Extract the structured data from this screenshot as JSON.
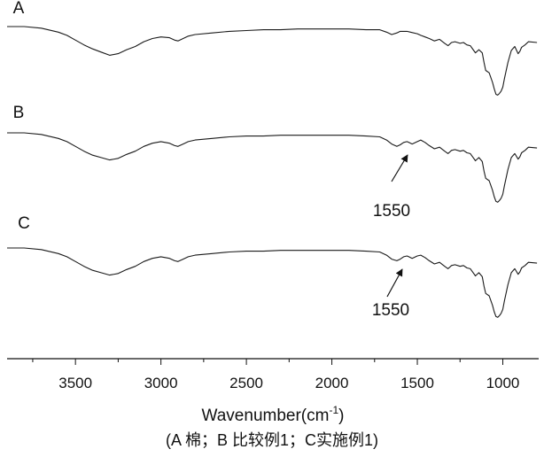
{
  "chart_data": {
    "type": "line",
    "xlabel_main": "Wavenumber(cm",
    "xlabel_sup": "-1",
    "xlabel_close": ")",
    "caption": "(A 棉；B 比较例1；C实施例1)",
    "xlim": [
      3900,
      790
    ],
    "x_reversed": true,
    "x_ticks": [
      3500,
      3000,
      2500,
      2000,
      1500,
      1000
    ],
    "x_tick_labels": [
      "3500",
      "3000",
      "2500",
      "2000",
      "1500",
      "1000"
    ],
    "y_axis_shown": false,
    "series": [
      {
        "name": "A",
        "x": [
          3900,
          3800,
          3700,
          3600,
          3550,
          3500,
          3450,
          3400,
          3350,
          3300,
          3250,
          3200,
          3150,
          3100,
          3050,
          3000,
          2950,
          2920,
          2900,
          2870,
          2840,
          2800,
          2700,
          2600,
          2500,
          2400,
          2300,
          2200,
          2100,
          2000,
          1900,
          1800,
          1720,
          1680,
          1650,
          1620,
          1600,
          1560,
          1540,
          1500,
          1480,
          1455,
          1430,
          1400,
          1370,
          1340,
          1320,
          1300,
          1280,
          1250,
          1230,
          1210,
          1190,
          1170,
          1160,
          1140,
          1120,
          1110,
          1100,
          1080,
          1060,
          1050,
          1040,
          1030,
          1020,
          1010,
          1000,
          990,
          970,
          950,
          930,
          910,
          900,
          890,
          870,
          850,
          800
        ],
        "y": [
          0.0,
          0.0,
          0.02,
          0.07,
          0.11,
          0.17,
          0.23,
          0.28,
          0.32,
          0.36,
          0.34,
          0.29,
          0.25,
          0.19,
          0.15,
          0.13,
          0.14,
          0.17,
          0.18,
          0.15,
          0.12,
          0.1,
          0.08,
          0.06,
          0.05,
          0.04,
          0.04,
          0.03,
          0.03,
          0.03,
          0.03,
          0.04,
          0.04,
          0.07,
          0.1,
          0.08,
          0.06,
          0.06,
          0.07,
          0.09,
          0.11,
          0.13,
          0.15,
          0.18,
          0.16,
          0.21,
          0.24,
          0.2,
          0.19,
          0.21,
          0.2,
          0.23,
          0.24,
          0.3,
          0.33,
          0.29,
          0.33,
          0.45,
          0.55,
          0.58,
          0.7,
          0.78,
          0.85,
          0.86,
          0.84,
          0.81,
          0.76,
          0.65,
          0.45,
          0.3,
          0.25,
          0.34,
          0.31,
          0.26,
          0.23,
          0.19,
          0.2
        ]
      },
      {
        "name": "B",
        "x": [
          3900,
          3800,
          3700,
          3600,
          3550,
          3500,
          3450,
          3400,
          3350,
          3300,
          3250,
          3200,
          3150,
          3100,
          3050,
          3000,
          2950,
          2920,
          2900,
          2870,
          2840,
          2800,
          2700,
          2600,
          2500,
          2400,
          2300,
          2200,
          2100,
          2000,
          1900,
          1800,
          1720,
          1680,
          1650,
          1620,
          1600,
          1580,
          1560,
          1550,
          1530,
          1500,
          1480,
          1455,
          1430,
          1400,
          1370,
          1340,
          1320,
          1300,
          1280,
          1250,
          1230,
          1210,
          1190,
          1170,
          1160,
          1140,
          1120,
          1110,
          1100,
          1080,
          1060,
          1050,
          1040,
          1030,
          1020,
          1010,
          1000,
          990,
          970,
          950,
          930,
          910,
          900,
          890,
          870,
          850,
          800
        ],
        "y": [
          0.0,
          0.0,
          0.02,
          0.07,
          0.11,
          0.17,
          0.23,
          0.28,
          0.31,
          0.34,
          0.32,
          0.27,
          0.23,
          0.17,
          0.13,
          0.11,
          0.13,
          0.16,
          0.17,
          0.14,
          0.11,
          0.09,
          0.07,
          0.05,
          0.04,
          0.04,
          0.03,
          0.03,
          0.03,
          0.03,
          0.03,
          0.04,
          0.05,
          0.09,
          0.14,
          0.17,
          0.15,
          0.12,
          0.11,
          0.12,
          0.14,
          0.11,
          0.09,
          0.12,
          0.16,
          0.2,
          0.18,
          0.23,
          0.26,
          0.22,
          0.21,
          0.23,
          0.22,
          0.25,
          0.26,
          0.32,
          0.35,
          0.31,
          0.36,
          0.48,
          0.57,
          0.6,
          0.72,
          0.8,
          0.86,
          0.87,
          0.85,
          0.82,
          0.77,
          0.66,
          0.46,
          0.31,
          0.26,
          0.33,
          0.3,
          0.25,
          0.22,
          0.18,
          0.19
        ]
      },
      {
        "name": "C",
        "x": [
          3900,
          3800,
          3700,
          3600,
          3550,
          3500,
          3450,
          3400,
          3350,
          3300,
          3250,
          3200,
          3150,
          3100,
          3050,
          3000,
          2950,
          2920,
          2900,
          2870,
          2840,
          2800,
          2700,
          2600,
          2500,
          2400,
          2300,
          2200,
          2100,
          2000,
          1900,
          1800,
          1720,
          1680,
          1650,
          1620,
          1600,
          1580,
          1560,
          1550,
          1530,
          1500,
          1480,
          1455,
          1430,
          1400,
          1370,
          1340,
          1320,
          1300,
          1280,
          1250,
          1230,
          1210,
          1190,
          1170,
          1160,
          1140,
          1120,
          1110,
          1100,
          1080,
          1060,
          1050,
          1040,
          1030,
          1020,
          1010,
          1000,
          990,
          970,
          950,
          930,
          910,
          900,
          890,
          870,
          850,
          800
        ],
        "y": [
          0.0,
          0.0,
          0.02,
          0.07,
          0.11,
          0.17,
          0.23,
          0.28,
          0.31,
          0.34,
          0.32,
          0.27,
          0.23,
          0.17,
          0.13,
          0.11,
          0.13,
          0.16,
          0.17,
          0.14,
          0.11,
          0.09,
          0.07,
          0.05,
          0.04,
          0.04,
          0.03,
          0.03,
          0.03,
          0.03,
          0.03,
          0.04,
          0.05,
          0.09,
          0.14,
          0.16,
          0.14,
          0.11,
          0.1,
          0.11,
          0.13,
          0.1,
          0.09,
          0.12,
          0.16,
          0.2,
          0.18,
          0.23,
          0.26,
          0.22,
          0.21,
          0.23,
          0.22,
          0.25,
          0.26,
          0.32,
          0.35,
          0.31,
          0.36,
          0.48,
          0.57,
          0.6,
          0.72,
          0.8,
          0.86,
          0.87,
          0.85,
          0.82,
          0.77,
          0.66,
          0.46,
          0.31,
          0.26,
          0.33,
          0.3,
          0.25,
          0.22,
          0.18,
          0.19
        ]
      }
    ],
    "annotations": [
      {
        "series": "B",
        "text": "1550",
        "x": 1550
      },
      {
        "series": "C",
        "text": "1550",
        "x": 1550
      }
    ]
  }
}
